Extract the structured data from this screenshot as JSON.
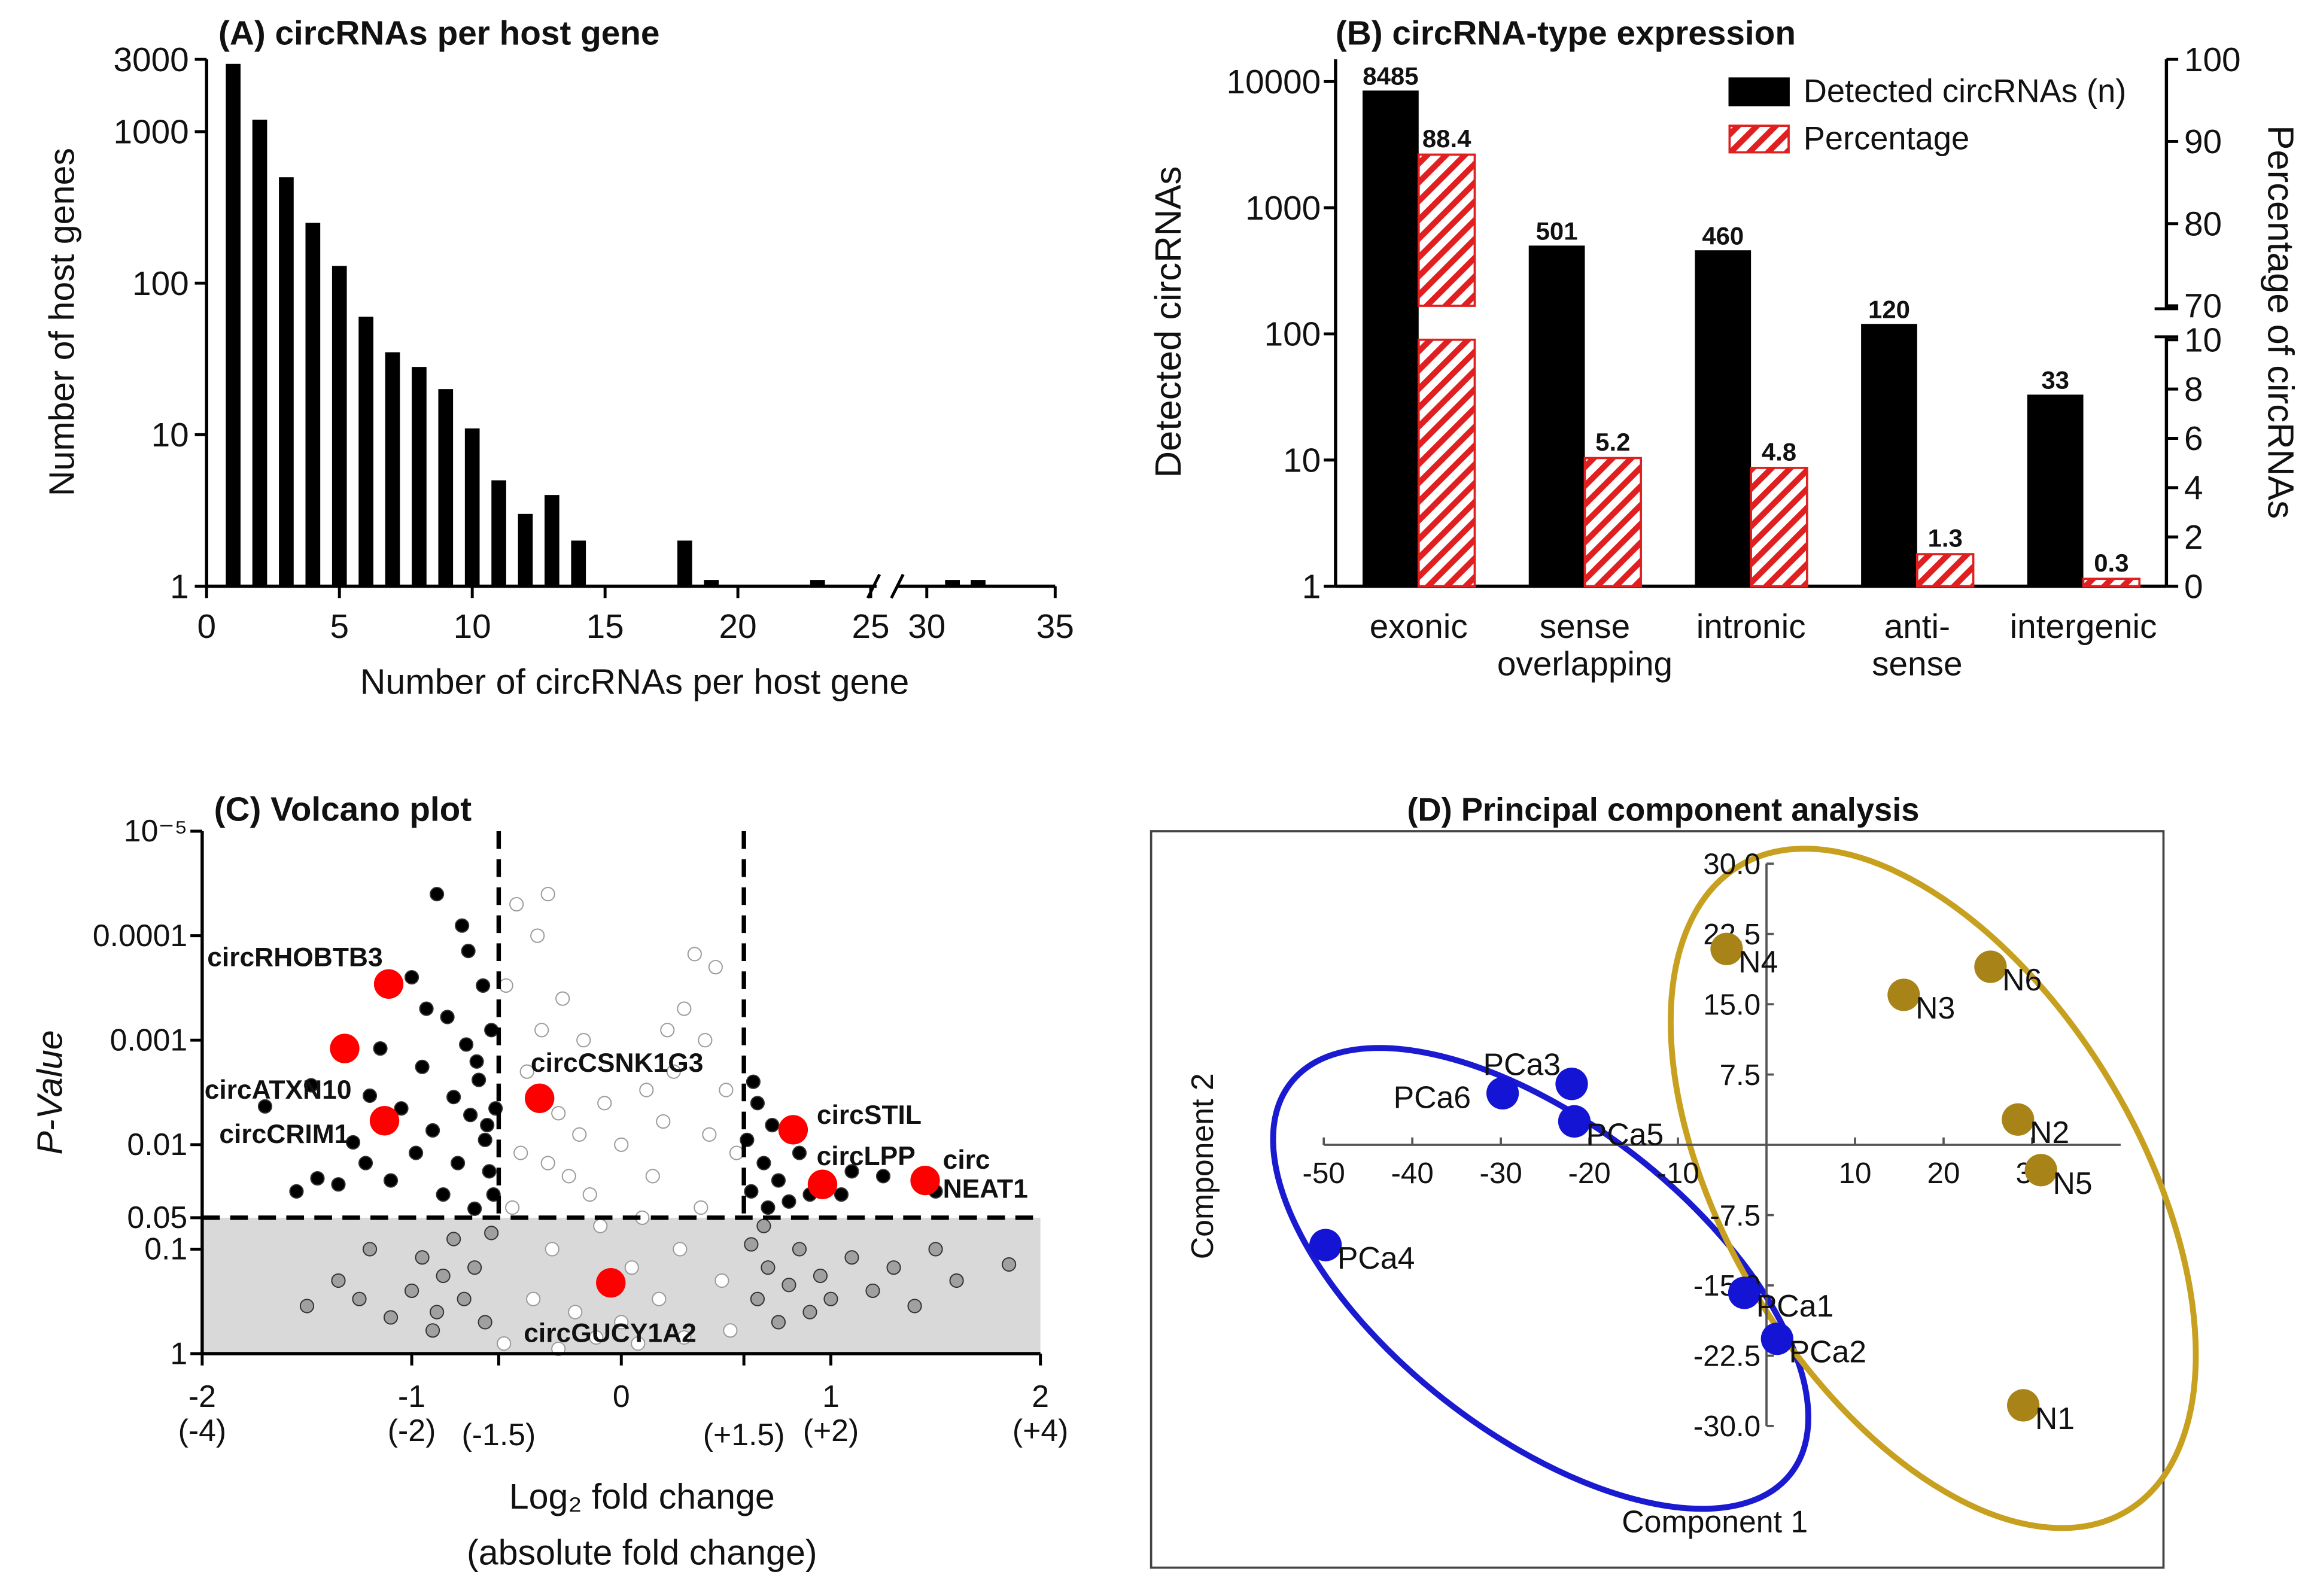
{
  "chart_data": [
    {
      "type": "bar",
      "title": "(A) circRNAs per host gene",
      "x_label": "Number of circRNAs per host gene",
      "y_label": "Number of host genes",
      "x": [
        1,
        2,
        3,
        4,
        5,
        6,
        7,
        8,
        9,
        10,
        11,
        12,
        13,
        14,
        18,
        19,
        23,
        31,
        32
      ],
      "values": [
        2800,
        1200,
        500,
        250,
        130,
        60,
        35,
        28,
        20,
        11,
        5,
        3,
        4,
        2,
        2,
        1.1,
        1.1,
        1.1,
        1.1
      ],
      "color": "#000000",
      "log_y": true,
      "ylim": [
        1,
        3000
      ],
      "yticks": [
        1,
        10,
        100,
        1000,
        3000
      ],
      "xlim": [
        0,
        35
      ],
      "axis_break": [
        25,
        30
      ],
      "xticks": [
        0,
        5,
        10,
        15,
        20,
        25,
        30,
        35
      ]
    },
    {
      "type": "bar",
      "title": "(B) circRNA-type expression",
      "y_label": "Detected circRNAs",
      "y2_label": "Percentage of circRNAs",
      "categories": [
        "exonic",
        "sense\noverlapping",
        "intronic",
        "anti-\nsense",
        "intergenic"
      ],
      "series": [
        {
          "name": "Detected circRNAs (n)",
          "color": "#000000",
          "values": [
            8485,
            501,
            460,
            120,
            33
          ]
        },
        {
          "name": "Percentage",
          "color": "#e02020",
          "hatch": true,
          "axis": "y2",
          "values": [
            88.4,
            5.2,
            4.8,
            1.3,
            0.3
          ]
        }
      ],
      "log_y": true,
      "ylim": [
        1,
        15000
      ],
      "yticks": [
        1,
        10,
        100,
        1000,
        10000
      ],
      "y2lim": [
        0,
        100
      ],
      "y2_break": [
        10,
        70
      ],
      "y2ticks": [
        0,
        2,
        4,
        6,
        8,
        10,
        70,
        80,
        90,
        100
      ],
      "legend": "upper right"
    },
    {
      "type": "scatter",
      "title": "(C) Volcano plot",
      "x_label": "Log₂ fold change",
      "x_label2": "(absolute fold change)",
      "y_label": "P-Value",
      "xlim": [
        -2,
        2
      ],
      "xticks": [
        {
          "value": -2,
          "label": "-2\n(-4)"
        },
        {
          "value": -1,
          "label": "-1\n(-2)"
        },
        {
          "value": -0.585,
          "label": "(-1.5)"
        },
        0,
        {
          "value": 0.585,
          "label": "(+1.5)"
        },
        {
          "value": 1,
          "label": "1\n(+2)"
        },
        {
          "value": 2,
          "label": "2\n(+4)"
        }
      ],
      "log_y": true,
      "ylim": [
        1,
        1e-05
      ],
      "yticks": [
        {
          "value": 1e-05,
          "label": "10⁻⁵"
        },
        0.0001,
        0.001,
        0.01,
        0.05,
        0.1,
        1
      ],
      "thresholds": {
        "x": [
          -0.585,
          0.585
        ],
        "y": 0.05
      },
      "series": [
        {
          "color": "#000000",
          "x": [
            -1.7,
            -1.45,
            -1.48,
            -1.35,
            -1.28,
            -1.22,
            -1.15,
            -1.1,
            -1.05,
            -1.0,
            -0.98,
            -0.95,
            -0.9,
            -0.88,
            -0.85,
            -0.83,
            -0.8,
            -0.78,
            -0.76,
            -0.74,
            -0.72,
            -0.7,
            -0.68,
            -0.66,
            -0.65,
            -0.63,
            -0.62,
            -0.6,
            -0.61,
            -0.73,
            -0.93,
            -1.2,
            -1.55,
            -0.69,
            -0.64,
            0.6,
            0.62,
            0.65,
            0.68,
            0.7,
            0.72,
            0.75,
            0.8,
            0.85,
            0.9,
            1.05,
            1.1,
            1.25,
            1.5,
            0.63
          ],
          "values": [
            0.0043,
            0.021,
            0.0027,
            0.024,
            0.0095,
            0.015,
            0.0012,
            0.022,
            0.0045,
            0.00025,
            0.012,
            0.0018,
            0.0073,
            4e-05,
            0.03,
            0.0006,
            0.0035,
            0.015,
            8e-05,
            0.0011,
            0.0052,
            0.041,
            0.0024,
            0.0003,
            0.009,
            0.018,
            0.0008,
            0.0045,
            0.03,
            0.00014,
            0.0005,
            0.0034,
            0.028,
            0.0016,
            0.0065,
            0.009,
            0.028,
            0.004,
            0.015,
            0.04,
            0.0065,
            0.022,
            0.035,
            0.012,
            0.03,
            0.03,
            0.018,
            0.02,
            0.028,
            0.0025
          ]
        },
        {
          "color": "#a0a0a0",
          "x": [
            -1.5,
            -1.35,
            -1.2,
            -1.1,
            -1.0,
            -0.95,
            -0.9,
            -0.85,
            -0.8,
            -0.75,
            -0.7,
            -0.65,
            -0.62,
            -1.25,
            -0.88,
            0.62,
            0.65,
            0.7,
            0.75,
            0.8,
            0.85,
            0.9,
            0.95,
            1.0,
            1.1,
            1.2,
            1.3,
            1.4,
            1.6,
            1.85,
            1.5,
            0.68
          ],
          "values": [
            0.35,
            0.2,
            0.1,
            0.45,
            0.25,
            0.12,
            0.6,
            0.18,
            0.08,
            0.3,
            0.15,
            0.5,
            0.07,
            0.3,
            0.4,
            0.09,
            0.3,
            0.15,
            0.5,
            0.22,
            0.1,
            0.4,
            0.18,
            0.3,
            0.12,
            0.25,
            0.15,
            0.35,
            0.2,
            0.14,
            0.1,
            0.06
          ]
        },
        {
          "color": "#ffffff",
          "edge": "#9a9a9a",
          "x": [
            -0.55,
            -0.5,
            -0.45,
            -0.4,
            -0.38,
            -0.35,
            -0.3,
            -0.28,
            -0.25,
            -0.2,
            -0.15,
            -0.1,
            -0.05,
            0,
            0.05,
            0.1,
            0.15,
            0.2,
            0.25,
            0.3,
            0.35,
            0.4,
            0.45,
            0.5,
            0.55,
            -0.52,
            -0.48,
            -0.42,
            -0.33,
            -0.22,
            -0.12,
            0.08,
            0.18,
            0.28,
            0.38,
            0.48,
            0.52,
            -0.56,
            -0.3,
            0.3,
            -0.18,
            0.22,
            -0.08,
            0.12,
            0.0,
            -0.35,
            0.42
          ],
          "values": [
            0.0003,
            5e-05,
            0.002,
            0.0001,
            0.0008,
            4e-05,
            0.005,
            0.0004,
            0.02,
            0.008,
            0.03,
            0.06,
            0.2,
            0.5,
            0.15,
            0.05,
            0.02,
            0.006,
            0.002,
            0.0005,
            0.00015,
            0.001,
            0.0002,
            0.003,
            0.012,
            0.04,
            0.012,
            0.3,
            0.1,
            0.4,
            0.7,
            0.8,
            0.3,
            0.1,
            0.04,
            0.2,
            0.6,
            0.8,
            0.9,
            0.7,
            0.001,
            0.0008,
            0.004,
            0.003,
            0.01,
            0.015,
            0.008
          ]
        },
        {
          "color": "#ff0000",
          "label_color": "#a01010",
          "labels": [
            "circRHOBTB3",
            "circATXN10",
            "circCRIM1",
            "circCSNK1G3",
            "circSTIL",
            "circLPP",
            "circ\nNEAT1",
            "circGUCY1A2"
          ],
          "x": [
            -1.11,
            -1.32,
            -1.13,
            -0.39,
            0.82,
            0.96,
            1.45,
            -0.05
          ],
          "values": [
            0.00029,
            0.0012,
            0.0059,
            0.0036,
            0.0072,
            0.024,
            0.022,
            0.21
          ]
        }
      ]
    },
    {
      "type": "scatter",
      "title": "(D) Principal component analysis",
      "x_label": "Component 1",
      "y_label": "Component 2",
      "xlim": [
        -50,
        40
      ],
      "xticks": [
        -50,
        -40,
        -30,
        -20,
        -10,
        10,
        20,
        30
      ],
      "ylim": [
        -30,
        30
      ],
      "yticks": [
        {
          "value": 30,
          "label": "30.0"
        },
        22.5,
        {
          "value": 15,
          "label": "15.0"
        },
        7.5,
        -7.5,
        {
          "value": -15,
          "label": "-15.0"
        },
        -22.5,
        {
          "value": -30,
          "label": "-30.0"
        }
      ],
      "label_color": "#e82020",
      "series": [
        {
          "color": "#1414d4",
          "labels": [
            "PCa1",
            "PCa2",
            "PCa3",
            "PCa4",
            "PCa5",
            "PCa6"
          ],
          "x": [
            -2.5,
            1.2,
            -22,
            -49.8,
            -21.7,
            -29.8
          ],
          "values": [
            -15.8,
            -20.7,
            6.5,
            -10.7,
            2.5,
            5.5
          ]
        },
        {
          "color": "#a88418",
          "labels": [
            "N1",
            "N2",
            "N3",
            "N4",
            "N5",
            "N6"
          ],
          "x": [
            29,
            28.4,
            15.5,
            -4.5,
            31,
            25.3
          ],
          "values": [
            -27.8,
            2.7,
            16,
            20.9,
            -2.7,
            19
          ]
        }
      ]
    }
  ]
}
